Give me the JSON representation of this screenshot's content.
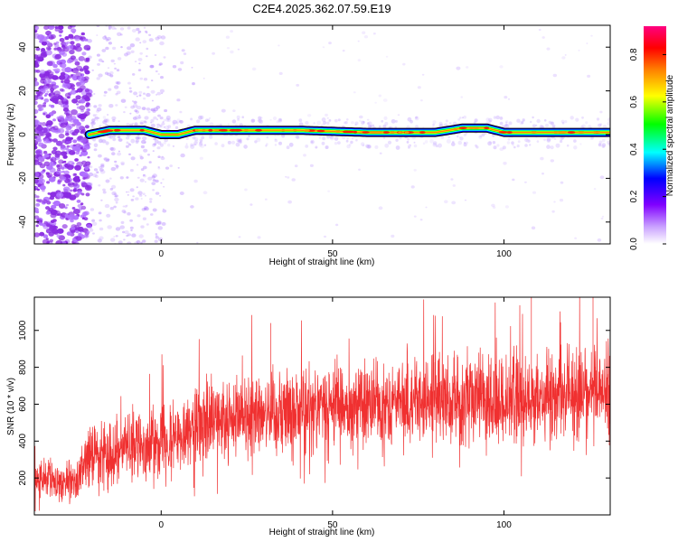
{
  "page_title": "C2E4.2025.362.07.59.E19",
  "chart_data": [
    {
      "type": "heatmap",
      "xlabel": "Height of straight line (km)",
      "ylabel": "Frequency (Hz)",
      "xlim": [
        -37,
        131
      ],
      "ylim": [
        -50,
        50
      ],
      "xticks": [
        0,
        50,
        100
      ],
      "yticks": [
        -40,
        -20,
        0,
        20,
        40
      ],
      "grid": false,
      "colorbar": {
        "label": "Normalized spectral amplitude",
        "range": [
          0,
          0.92
        ],
        "ticks": [
          0.0,
          0.2,
          0.4,
          0.6,
          0.8
        ],
        "colormap": [
          "#ffffff",
          "#8000ff",
          "#0000ff",
          "#00ffff",
          "#00ff00",
          "#ffff00",
          "#ff8000",
          "#ff0000",
          "#ff0080"
        ]
      },
      "dominant_band": {
        "description_ref": "narrow band near 0–2 Hz",
        "x": [
          -21,
          -15,
          -10,
          -5,
          0,
          5,
          10,
          20,
          40,
          60,
          80,
          88,
          95,
          100,
          131
        ],
        "frequency": [
          0,
          2,
          2,
          2,
          0,
          0,
          2,
          2,
          2,
          1,
          1,
          3,
          3,
          1,
          1
        ]
      }
    },
    {
      "type": "line",
      "xlabel": "Height of straight line (km)",
      "ylabel": "SNR (10 * v/v)",
      "xlim": [
        -37,
        131
      ],
      "ylim": [
        0,
        1180
      ],
      "xticks": [
        0,
        50,
        100
      ],
      "yticks": [
        200,
        400,
        600,
        800,
        1000
      ],
      "grid": false,
      "series_color": "#f03030",
      "trend": {
        "x": [
          -37,
          -25,
          -21,
          -10,
          0,
          10,
          20,
          30,
          40,
          60,
          80,
          100,
          120,
          131
        ],
        "mean": [
          180,
          180,
          320,
          360,
          420,
          470,
          520,
          560,
          580,
          600,
          620,
          620,
          650,
          660
        ],
        "spread": [
          120,
          120,
          200,
          200,
          220,
          230,
          240,
          250,
          250,
          260,
          260,
          260,
          260,
          260
        ],
        "max_peaks": [
          {
            "x": 126,
            "y": 1180
          },
          {
            "x": 108,
            "y": 1180
          },
          {
            "x": 32,
            "y": 1040
          }
        ]
      }
    }
  ]
}
